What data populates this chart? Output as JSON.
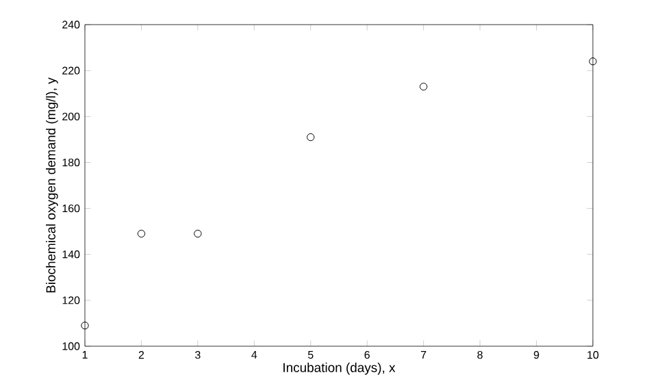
{
  "chart_data": {
    "type": "scatter",
    "xlabel": "Incubation (days), x",
    "ylabel": "Biochemical oxygen demand (mg/l), y",
    "x": [
      1,
      2,
      3,
      5,
      7,
      10
    ],
    "series": [
      {
        "color": "#000000",
        "values": [
          109,
          149,
          149,
          191,
          213,
          224
        ]
      }
    ],
    "marker": "circle",
    "grid": false,
    "xlim": [
      1,
      10
    ],
    "xticks": [
      1,
      2,
      3,
      4,
      5,
      6,
      7,
      8,
      9,
      10
    ],
    "ylim": [
      100,
      240
    ],
    "yticks": [
      100,
      120,
      140,
      160,
      180,
      200,
      220,
      240
    ]
  }
}
